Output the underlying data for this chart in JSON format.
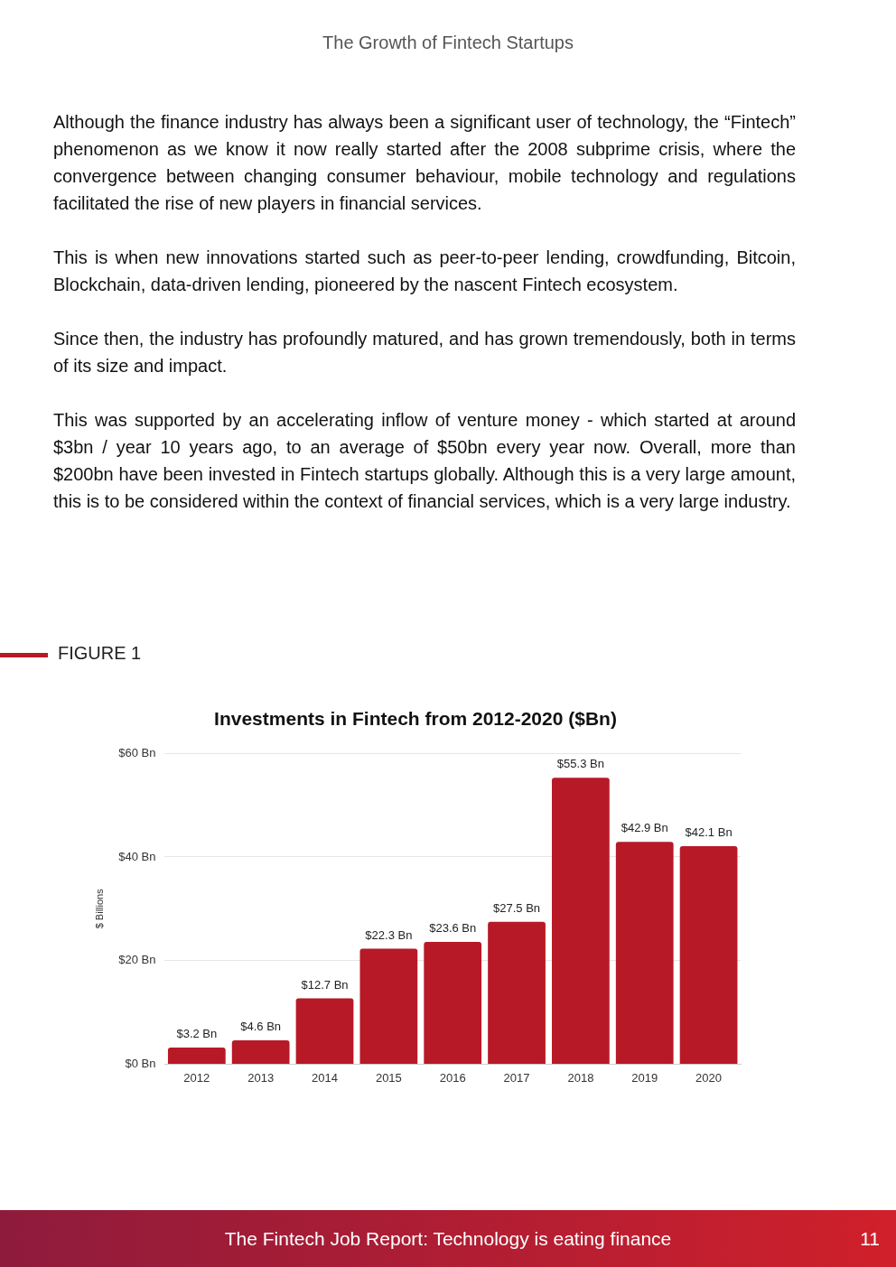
{
  "chart_data": {
    "type": "bar",
    "title": "Investments in Fintech from 2012-2020 ($Bn)",
    "ylabel": "$ Billions",
    "categories": [
      "2012",
      "2013",
      "2014",
      "2015",
      "2016",
      "2017",
      "2018",
      "2019",
      "2020"
    ],
    "values": [
      3.2,
      4.6,
      12.7,
      22.3,
      23.6,
      27.5,
      55.3,
      42.9,
      42.1
    ],
    "value_labels": [
      "$3.2 Bn",
      "$4.6 Bn",
      "$12.7 Bn",
      "$22.3 Bn",
      "$23.6 Bn",
      "$27.5 Bn",
      "$55.3 Bn",
      "$42.9 Bn",
      "$42.1 Bn"
    ],
    "color": "#b71926",
    "ylim": [
      0,
      60
    ],
    "yticks": [
      {
        "value": 0,
        "label": "$0 Bn"
      },
      {
        "value": 20,
        "label": "$20 Bn"
      },
      {
        "value": 40,
        "label": "$40 Bn"
      },
      {
        "value": 60,
        "label": "$60 Bn"
      }
    ],
    "grid": "y",
    "legend": false,
    "annotations": [
      "The Growth of Fintech Startups",
      "Although the finance industry has always been a significant user of technology, the “Fintech” phenomenon as we know it now really started after the 2008 subprime crisis, where the convergence between changing consumer behaviour, mobile technology and regulations facilitated the rise of new players in financial services.",
      "This is when new innovations started such as peer-to-peer lending, crowdfunding, Bitcoin, Blockchain, data-driven lending, pioneered by the nascent Fintech ecosystem.",
      "Since then, the industry has profoundly matured, and has grown tremendously, both in terms of its size and impact.",
      "This was supported by an accelerating inflow of venture money - which started at around $3bn / year 10 years ago, to an average of $50bn every year now. Overall, more than $200bn have been invested in Fintech startups globally. Although this is a very large amount, this is to be considered within the context of financial services, which is a very large industry.",
      "FIGURE 1",
      "The Fintech Job Report: Technology is eating finance",
      "11"
    ]
  }
}
